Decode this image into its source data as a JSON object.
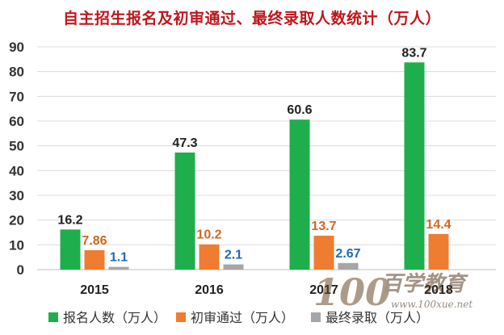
{
  "chart_data": {
    "type": "bar",
    "title": "自主招生报名及初审通过、最终录取人数统计（万人）",
    "categories": [
      "2015",
      "2016",
      "2017",
      "2018"
    ],
    "series": [
      {
        "name": "报名人数（万人）",
        "color": "#1fae4c",
        "values": [
          16.2,
          47.3,
          60.6,
          83.7
        ],
        "labels": [
          "16.2",
          "47.3",
          "60.6",
          "83.7"
        ],
        "label_color": "#222222"
      },
      {
        "name": "初审通过（万人）",
        "color": "#ee7d31",
        "values": [
          7.86,
          10.2,
          13.7,
          14.4
        ],
        "labels": [
          "7.86",
          "10.2",
          "13.7",
          "14.4"
        ],
        "label_color": "#d3661f"
      },
      {
        "name": "最终录取（万人）",
        "color": "#a6a6a6",
        "values": [
          1.1,
          2.1,
          2.67,
          null
        ],
        "labels": [
          "1.1",
          "2.1",
          "2.67",
          ""
        ],
        "label_color": "#1f6bb8"
      }
    ],
    "ylim": [
      0,
      90
    ],
    "yticks": [
      0,
      10,
      20,
      30,
      40,
      50,
      60,
      70,
      80,
      90
    ],
    "grid": true,
    "legend_position": "bottom"
  },
  "watermark": {
    "logo_text": "100",
    "brand_text": "百学教育",
    "url_text": "www.100xue.net"
  }
}
